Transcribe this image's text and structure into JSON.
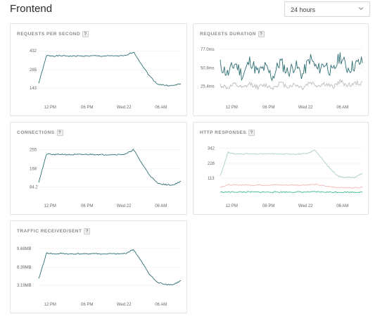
{
  "page": {
    "title": "Frontend",
    "time_range": "24 hours",
    "colors": {
      "series": "#2e6f73",
      "grid": "#eeeeee",
      "http_2xx": "#a8cfc8",
      "http_3xx": "#f0b8b8",
      "http_4xx": "#3bb89a"
    }
  },
  "cards": [
    {
      "title": "REQUESTS PER SECOND",
      "help": "?"
    },
    {
      "title": "REQUESTS DURATION",
      "help": "?"
    },
    {
      "title": "CONNECTIONS",
      "help": "?"
    },
    {
      "title": "HTTP RESPONSES",
      "help": "?"
    },
    {
      "title": "TRAFFIC RECEIVED/SENT",
      "help": "?"
    }
  ],
  "chart_data": [
    {
      "type": "line",
      "title": "REQUESTS PER SECOND",
      "y_ticks": [
        "432",
        "285",
        "143"
      ],
      "x_ticks": [
        "12 PM",
        "06 PM",
        "Wed 22",
        "06 AM"
      ],
      "ylim": [
        95,
        460
      ],
      "series": [
        {
          "values": [
            180,
            395,
            392,
            393,
            391,
            392,
            392,
            393,
            391,
            392,
            392,
            393,
            424,
            330,
            240,
            176,
            165,
            162,
            178
          ]
        }
      ]
    },
    {
      "type": "line",
      "title": "REQUESTS DURATION",
      "y_ticks": [
        "77.0ms",
        "50.8ms",
        "25.4ms"
      ],
      "x_ticks": [
        "12 PM",
        "06 PM",
        "Wed 22",
        "06 AM"
      ],
      "ylim": [
        14,
        80
      ],
      "series": [
        {
          "values": [
            55,
            42,
            58,
            40,
            62,
            44,
            52,
            38,
            60,
            45,
            55,
            41,
            65,
            48,
            58,
            43,
            68,
            50,
            55,
            60
          ]
        },
        {
          "values": [
            27,
            23,
            28,
            22,
            29,
            24,
            27,
            23,
            30,
            25,
            28,
            23,
            31,
            26,
            29,
            24,
            32,
            27,
            29,
            30
          ]
        }
      ]
    },
    {
      "type": "line",
      "title": "CONNECTIONS",
      "y_ticks": [
        "255",
        "168",
        "84.2"
      ],
      "x_ticks": [
        "12 PM",
        "06 PM",
        "Wed 22",
        "06 AM"
      ],
      "ylim": [
        56,
        272
      ],
      "series": [
        {
          "values": [
            105,
            235,
            231,
            233,
            231,
            232,
            232,
            233,
            231,
            232,
            232,
            233,
            255,
            195,
            140,
            101,
            94,
            92,
            110
          ]
        }
      ]
    },
    {
      "type": "line",
      "title": "HTTP RESPONSES",
      "y_ticks": [
        "342",
        "226",
        "113"
      ],
      "x_ticks": [
        "12 PM",
        "06 PM",
        "Wed 22",
        "06 AM"
      ],
      "ylim": [
        0,
        360
      ],
      "series": [
        {
          "values": [
            130,
            310,
            295,
            300,
            296,
            298,
            297,
            299,
            296,
            298,
            297,
            299,
            330,
            250,
            180,
            125,
            120,
            118,
            150
          ]
        },
        {
          "values": [
            45,
            62,
            60,
            62,
            60,
            61,
            60,
            62,
            60,
            61,
            60,
            62,
            65,
            55,
            47,
            42,
            40,
            40,
            44
          ]
        },
        {
          "values": [
            6,
            7,
            7,
            7,
            7,
            7,
            7,
            7,
            7,
            7,
            7,
            7,
            8,
            7,
            6,
            6,
            6,
            6,
            6
          ]
        }
      ]
    },
    {
      "type": "line",
      "title": "TRAFFIC RECEIVED/SENT",
      "y_ticks": [
        "9.68MB",
        "6.39MB",
        "3.19MB"
      ],
      "x_ticks": [
        "12 PM",
        "06 PM",
        "Wed 22",
        "06 AM"
      ],
      "ylim": [
        2.1,
        10.4
      ],
      "series": [
        {
          "values": [
            4.3,
            8.9,
            8.7,
            8.8,
            8.7,
            8.75,
            8.7,
            8.8,
            8.7,
            8.75,
            8.7,
            8.8,
            9.5,
            7.4,
            5.2,
            3.7,
            3.4,
            3.3,
            4.0
          ]
        }
      ]
    }
  ]
}
